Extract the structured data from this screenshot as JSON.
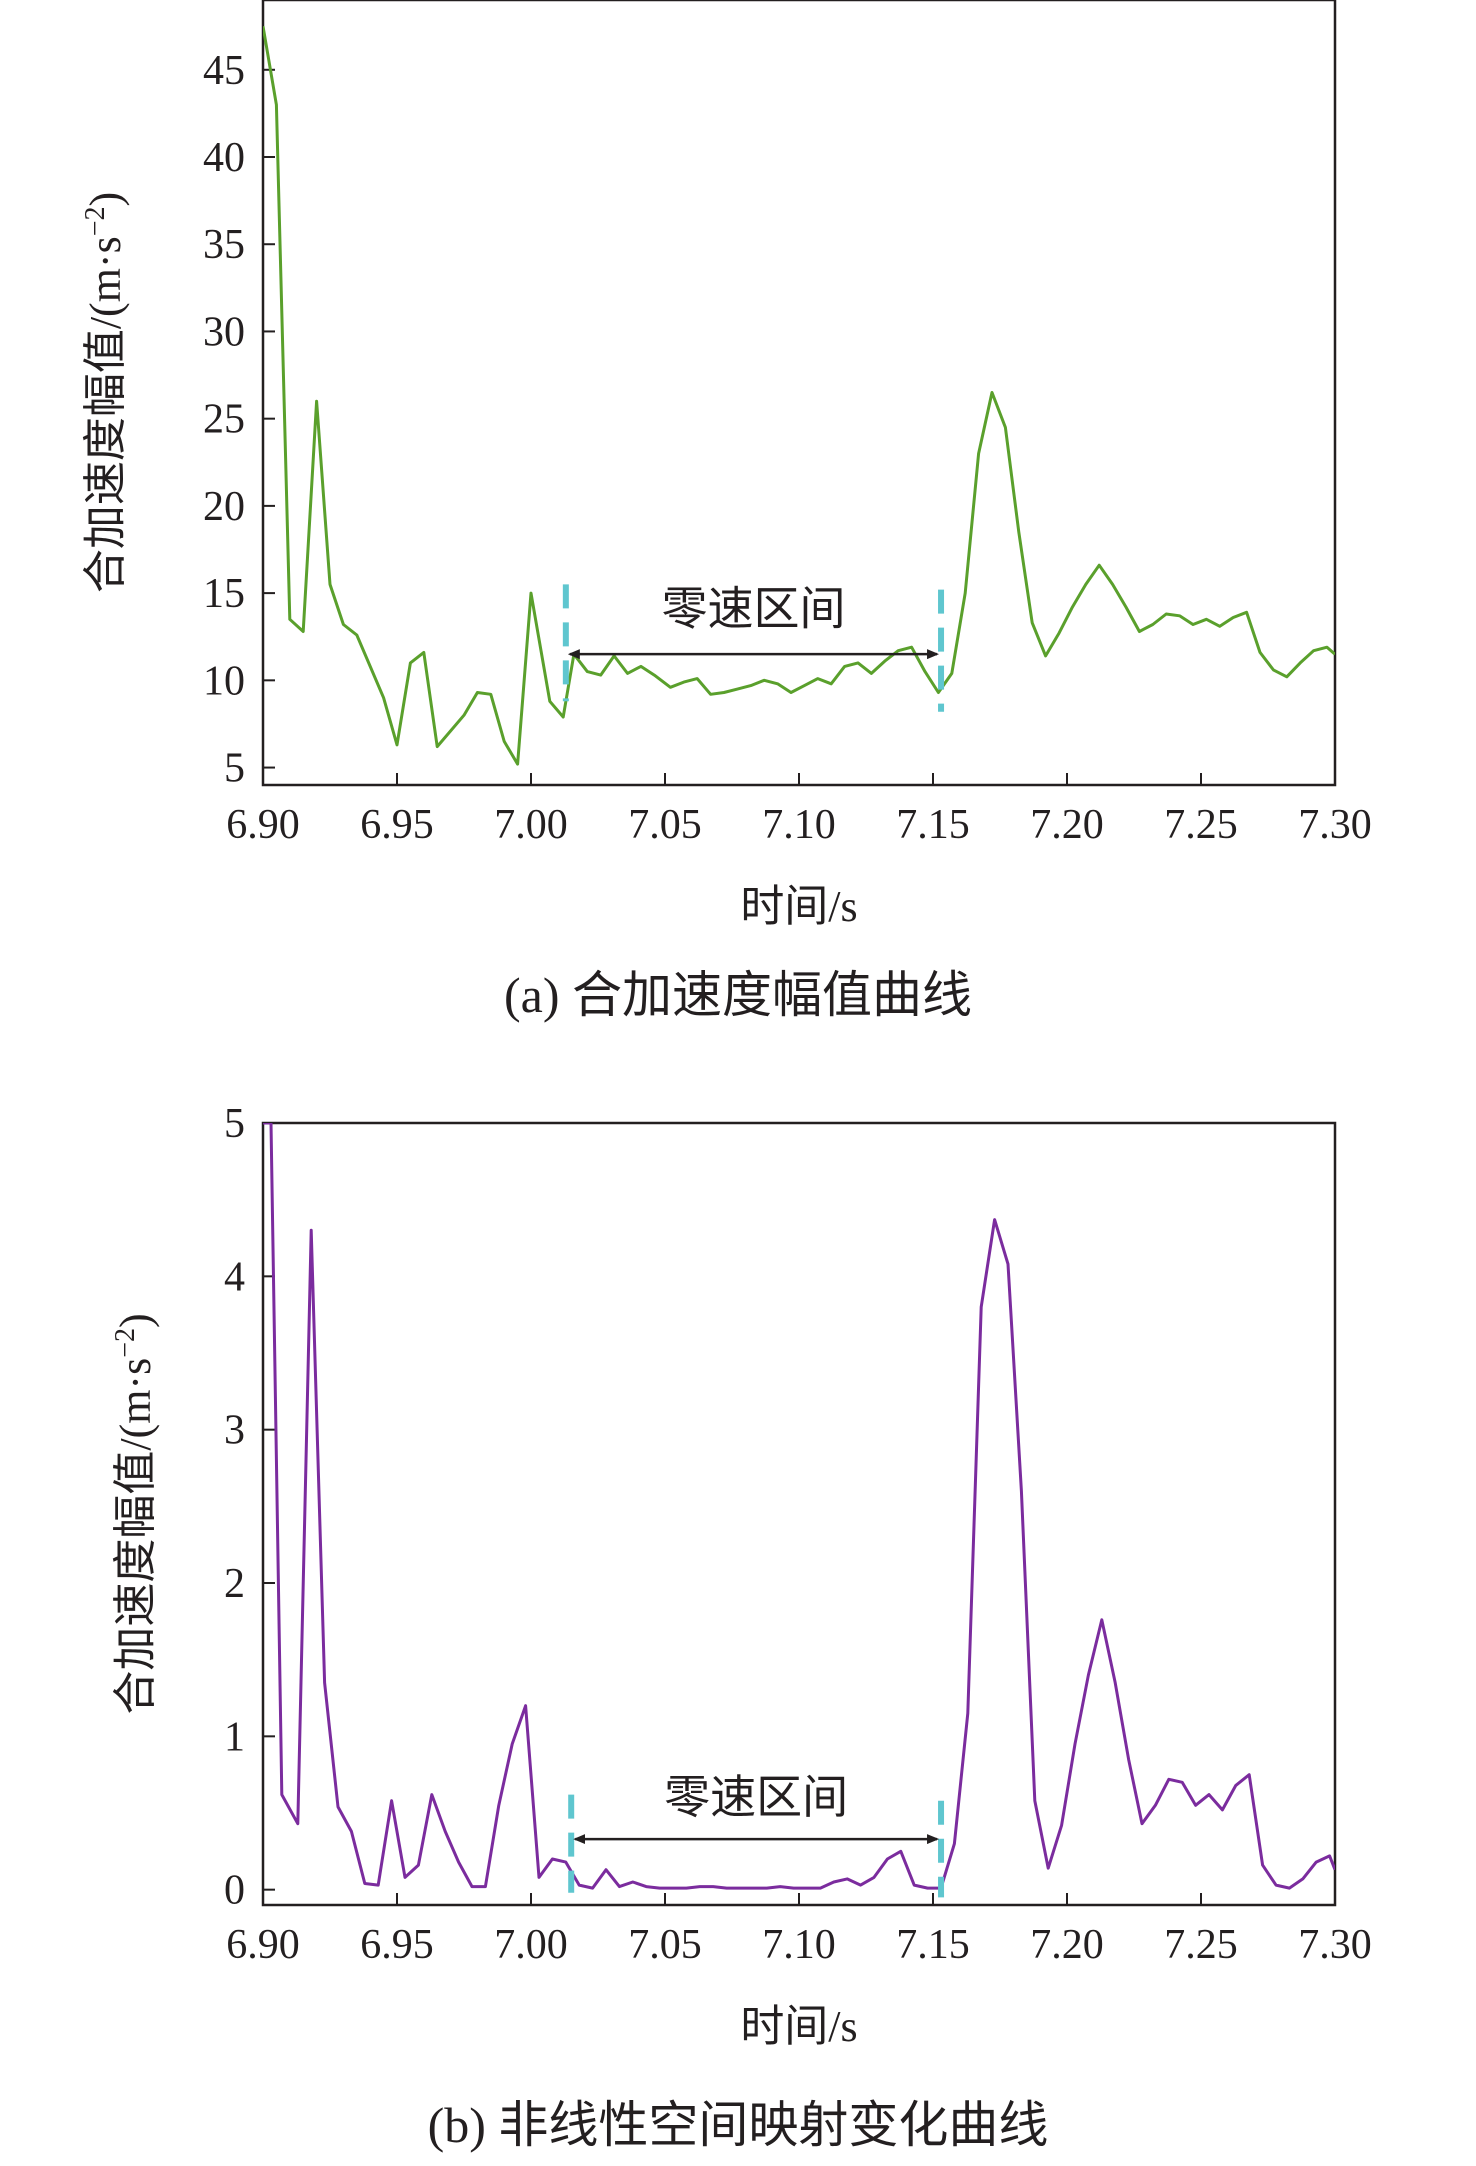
{
  "chart_data": [
    {
      "id": "a",
      "type": "line",
      "caption": "(a) 合加速度幅值曲线",
      "xlabel": "时间/s",
      "ylabel": "合加速度幅值/(m·s",
      "ylabel_sup": "−2",
      "ylabel_tail": ")",
      "xlim": [
        6.9,
        7.3
      ],
      "ylim": [
        4,
        49
      ],
      "xticks": [
        6.9,
        6.95,
        7.0,
        7.05,
        7.1,
        7.15,
        7.2,
        7.25,
        7.3
      ],
      "xtick_labels": [
        "6.90",
        "6.95",
        "7.00",
        "7.05",
        "7.10",
        "7.15",
        "7.20",
        "7.25",
        "7.30"
      ],
      "yticks": [
        5,
        10,
        15,
        20,
        25,
        30,
        35,
        40,
        45
      ],
      "ytick_labels": [
        "5",
        "10",
        "15",
        "20",
        "25",
        "30",
        "35",
        "40",
        "45"
      ],
      "grid": false,
      "line_color": "#5aa02c",
      "marker_color": "#5fc6cf",
      "annotation": {
        "text": "零速区间",
        "from": 7.013,
        "to": 7.153,
        "y": 11.5,
        "label_y": 13.2
      },
      "zero_velocity_markers": [
        {
          "x": 7.013,
          "y_range": [
            8.8,
            15.5
          ]
        },
        {
          "x": 7.153,
          "y_range": [
            8.2,
            15.2
          ]
        }
      ],
      "series": [
        {
          "x": [
            6.9,
            6.905,
            6.91,
            6.915,
            6.92,
            6.925,
            6.93,
            6.935,
            6.945,
            6.95,
            6.955,
            6.96,
            6.965,
            6.975,
            6.98,
            6.985,
            6.99,
            6.995,
            7.0,
            7.007,
            7.012,
            7.016,
            7.021,
            7.026,
            7.031,
            7.036,
            7.041,
            7.046,
            7.052,
            7.057,
            7.062,
            7.067,
            7.072,
            7.077,
            7.082,
            7.087,
            7.092,
            7.097,
            7.102,
            7.107,
            7.112,
            7.117,
            7.122,
            7.127,
            7.132,
            7.137,
            7.142,
            7.147,
            7.152,
            7.157,
            7.162,
            7.167,
            7.172,
            7.177,
            7.182,
            7.187,
            7.192,
            7.197,
            7.202,
            7.207,
            7.212,
            7.217,
            7.222,
            7.227,
            7.232,
            7.237,
            7.242,
            7.247,
            7.252,
            7.257,
            7.262,
            7.267,
            7.272,
            7.277,
            7.282,
            7.287,
            7.292,
            7.297,
            7.3
          ],
          "y": [
            47.5,
            43.0,
            13.5,
            12.8,
            26.0,
            15.5,
            13.2,
            12.6,
            9.0,
            6.3,
            11.0,
            11.6,
            6.2,
            8.0,
            9.3,
            9.2,
            6.5,
            5.2,
            15.0,
            8.8,
            7.9,
            11.5,
            10.5,
            10.3,
            11.4,
            10.4,
            10.8,
            10.3,
            9.6,
            9.9,
            10.1,
            9.2,
            9.3,
            9.5,
            9.7,
            10.0,
            9.8,
            9.3,
            9.7,
            10.1,
            9.8,
            10.8,
            11.0,
            10.4,
            11.1,
            11.7,
            11.9,
            10.5,
            9.3,
            10.4,
            15.0,
            23.0,
            26.5,
            24.5,
            18.5,
            13.3,
            11.4,
            12.7,
            14.2,
            15.5,
            16.6,
            15.5,
            14.2,
            12.8,
            13.2,
            13.8,
            13.7,
            13.2,
            13.5,
            13.1,
            13.6,
            13.9,
            11.6,
            10.6,
            10.2,
            11.0,
            11.7,
            11.9,
            11.5
          ]
        }
      ]
    },
    {
      "id": "b",
      "type": "line",
      "caption": "(b) 非线性空间映射变化曲线",
      "xlabel": "时间/s",
      "ylabel": "合加速度幅值/(m·s",
      "ylabel_sup": "−2",
      "ylabel_tail": ")",
      "xlim": [
        6.9,
        7.3
      ],
      "ylim": [
        -0.1,
        5.0
      ],
      "xticks": [
        6.9,
        6.95,
        7.0,
        7.05,
        7.1,
        7.15,
        7.2,
        7.25,
        7.3
      ],
      "xtick_labels": [
        "6.90",
        "6.95",
        "7.00",
        "7.05",
        "7.10",
        "7.15",
        "7.20",
        "7.25",
        "7.30"
      ],
      "yticks": [
        0,
        1,
        2,
        3,
        4,
        5
      ],
      "ytick_labels": [
        "0",
        "1",
        "2",
        "3",
        "4",
        "5"
      ],
      "grid": false,
      "line_color": "#7b2c9e",
      "marker_color": "#5fc6cf",
      "annotation": {
        "text": "零速区间",
        "from": 7.015,
        "to": 7.153,
        "y": 0.33,
        "label_y": 0.5
      },
      "zero_velocity_markers": [
        {
          "x": 7.015,
          "y_range": [
            -0.02,
            0.62
          ]
        },
        {
          "x": 7.153,
          "y_range": [
            -0.05,
            0.58
          ]
        }
      ],
      "series": [
        {
          "x": [
            6.9,
            6.903,
            6.907,
            6.913,
            6.918,
            6.923,
            6.928,
            6.933,
            6.938,
            6.943,
            6.948,
            6.953,
            6.958,
            6.963,
            6.968,
            6.973,
            6.978,
            6.983,
            6.988,
            6.993,
            6.998,
            7.003,
            7.008,
            7.013,
            7.018,
            7.023,
            7.028,
            7.033,
            7.038,
            7.043,
            7.048,
            7.053,
            7.058,
            7.063,
            7.068,
            7.073,
            7.078,
            7.083,
            7.088,
            7.093,
            7.098,
            7.103,
            7.108,
            7.113,
            7.118,
            7.123,
            7.128,
            7.133,
            7.138,
            7.143,
            7.148,
            7.153,
            7.158,
            7.163,
            7.168,
            7.173,
            7.178,
            7.183,
            7.188,
            7.193,
            7.198,
            7.203,
            7.208,
            7.213,
            7.218,
            7.223,
            7.228,
            7.233,
            7.238,
            7.243,
            7.248,
            7.253,
            7.258,
            7.263,
            7.268,
            7.273,
            7.278,
            7.283,
            7.288,
            7.293,
            7.298,
            7.3
          ],
          "y": [
            5.0,
            5.0,
            0.62,
            0.43,
            4.3,
            1.35,
            0.54,
            0.38,
            0.04,
            0.03,
            0.58,
            0.08,
            0.16,
            0.62,
            0.38,
            0.18,
            0.02,
            0.02,
            0.55,
            0.95,
            1.2,
            0.08,
            0.2,
            0.18,
            0.03,
            0.01,
            0.13,
            0.02,
            0.05,
            0.02,
            0.01,
            0.01,
            0.01,
            0.02,
            0.02,
            0.01,
            0.01,
            0.01,
            0.01,
            0.02,
            0.01,
            0.01,
            0.01,
            0.05,
            0.07,
            0.03,
            0.08,
            0.2,
            0.25,
            0.03,
            0.01,
            0.01,
            0.3,
            1.15,
            3.8,
            4.37,
            4.08,
            2.6,
            0.58,
            0.14,
            0.42,
            0.95,
            1.4,
            1.76,
            1.35,
            0.85,
            0.43,
            0.55,
            0.72,
            0.7,
            0.55,
            0.62,
            0.52,
            0.68,
            0.75,
            0.16,
            0.03,
            0.01,
            0.07,
            0.18,
            0.22,
            0.13
          ]
        }
      ]
    }
  ]
}
